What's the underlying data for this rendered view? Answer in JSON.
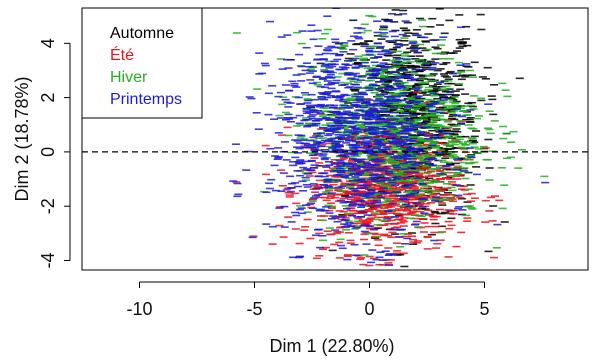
{
  "chart_data": {
    "type": "scatter",
    "title": "",
    "xlabel": "Dim 1 (22.80%)",
    "ylabel": "Dim 2 (18.78%)",
    "xlim": [
      -12.5,
      9.5
    ],
    "ylim": [
      -4.35,
      5.3
    ],
    "xticks": [
      -10,
      -5,
      0,
      5
    ],
    "yticks": [
      -4,
      -2,
      0,
      2,
      4
    ],
    "x_tick_labels": [
      "-10",
      "-5",
      "0",
      "5"
    ],
    "y_tick_labels": [
      "-4",
      "-2",
      "0",
      "2",
      "4"
    ],
    "reference_lines": [
      {
        "orientation": "horizontal",
        "y": 0,
        "style": "dashed"
      }
    ],
    "legend": {
      "placement": "top-left",
      "entries": [
        "Automne",
        "Été",
        "Hiver",
        "Printemps"
      ]
    },
    "series": [
      {
        "name": "Automne",
        "color": "#000000",
        "cloud": {
          "center": [
            1.8,
            1.2
          ],
          "spread": [
            1.5,
            1.9
          ],
          "n": 900
        }
      },
      {
        "name": "Été",
        "color": "#e8141c",
        "cloud": {
          "center": [
            0.6,
            -1.3
          ],
          "spread": [
            1.7,
            1.2
          ],
          "n": 900
        }
      },
      {
        "name": "Hiver",
        "color": "#22b022",
        "cloud": {
          "center": [
            1.0,
            0.8
          ],
          "spread": [
            2.0,
            1.7
          ],
          "n": 900
        }
      },
      {
        "name": "Printemps",
        "color": "#1c1cd6",
        "cloud": {
          "center": [
            -0.5,
            0.6
          ],
          "spread": [
            1.9,
            1.9
          ],
          "n": 1100
        }
      }
    ]
  }
}
